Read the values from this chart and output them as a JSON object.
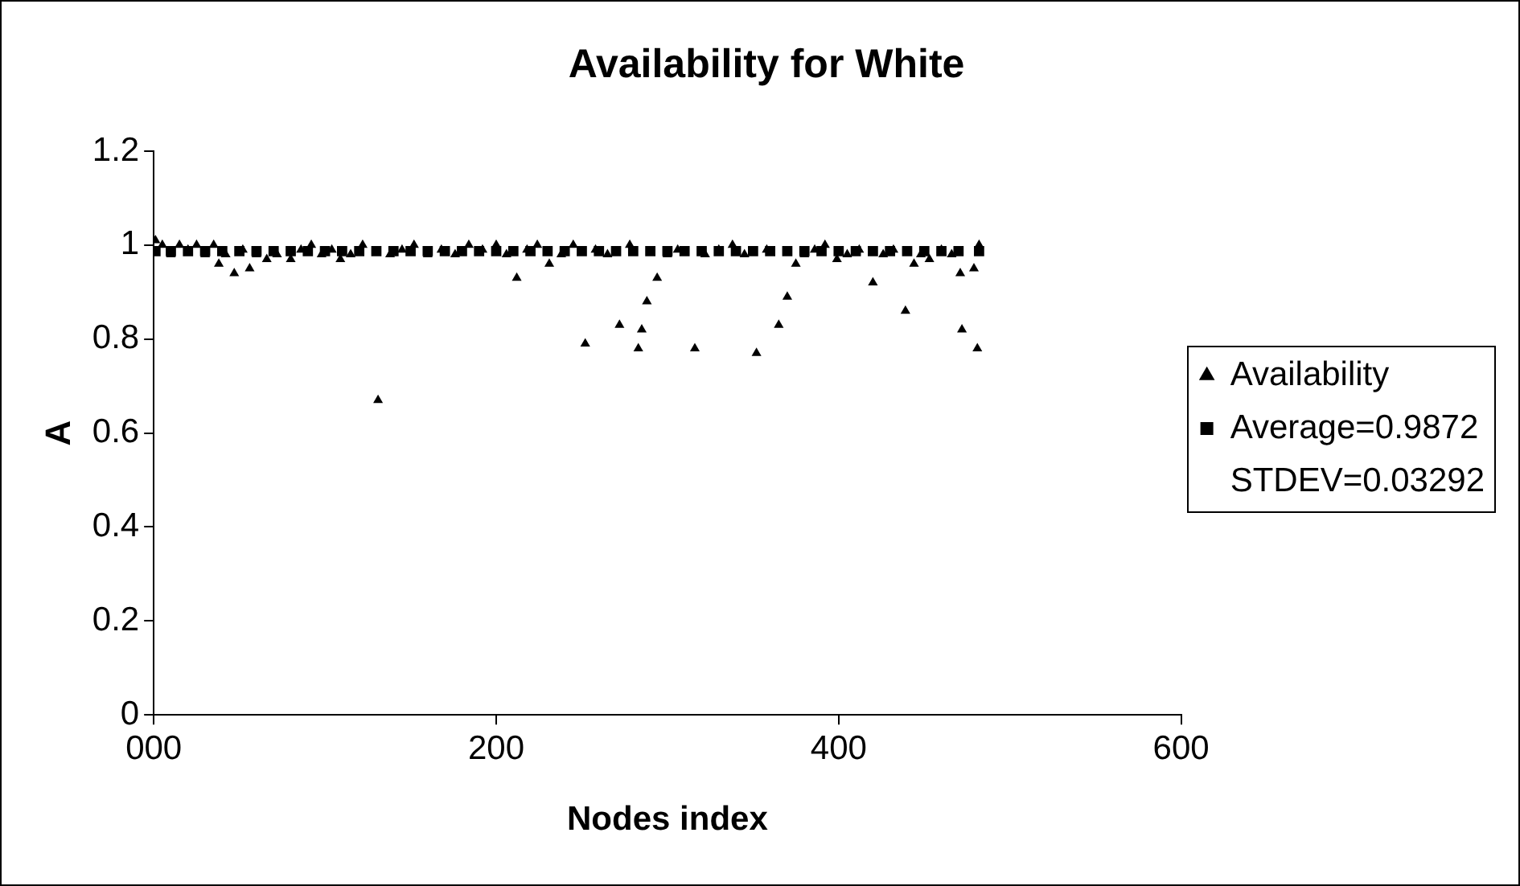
{
  "chart_data": {
    "type": "scatter",
    "title": "Availability for White",
    "xlabel": "Nodes index",
    "ylabel": "A",
    "xlim": [
      0,
      600
    ],
    "xticks": [
      {
        "value": 0,
        "label": "000"
      },
      200,
      400,
      600
    ],
    "ylim": [
      0,
      1.2
    ],
    "yticks": [
      0,
      0.2,
      0.4,
      0.6,
      0.8,
      1,
      1.2
    ],
    "grid": false,
    "legend": "right",
    "annotations": [
      "STDEV=0.03292"
    ],
    "series": [
      {
        "name": "Availability",
        "type": "scatter",
        "marker": "triangle",
        "color": "#000000",
        "x": [
          1,
          5,
          10,
          15,
          20,
          25,
          30,
          35,
          38,
          42,
          47,
          52,
          56,
          60,
          66,
          72,
          80,
          86,
          92,
          98,
          104,
          109,
          115,
          122,
          131,
          138,
          145,
          152,
          160,
          168,
          176,
          184,
          192,
          200,
          206,
          212,
          218,
          224,
          231,
          238,
          245,
          252,
          258,
          265,
          272,
          278,
          283,
          285,
          288,
          294,
          300,
          306,
          316,
          322,
          330,
          338,
          345,
          352,
          358,
          365,
          370,
          375,
          380,
          386,
          392,
          399,
          405,
          412,
          420,
          426,
          432,
          439,
          444,
          448,
          453,
          460,
          466,
          471,
          472,
          479,
          481,
          482
        ],
        "values": [
          1.01,
          1,
          0.98,
          1,
          0.99,
          1,
          0.98,
          1,
          0.96,
          0.98,
          0.94,
          0.99,
          0.95,
          0.98,
          0.97,
          0.98,
          0.97,
          0.99,
          1,
          0.98,
          0.99,
          0.97,
          0.98,
          1,
          0.67,
          0.98,
          0.99,
          1,
          0.98,
          0.99,
          0.98,
          1,
          0.99,
          1,
          0.98,
          0.93,
          0.99,
          1,
          0.96,
          0.98,
          1,
          0.79,
          0.99,
          0.98,
          0.83,
          1,
          0.78,
          0.82,
          0.88,
          0.93,
          0.98,
          0.99,
          0.78,
          0.98,
          0.99,
          1,
          0.98,
          0.77,
          0.99,
          0.83,
          0.89,
          0.96,
          0.98,
          0.99,
          1,
          0.97,
          0.98,
          0.99,
          0.92,
          0.98,
          0.99,
          0.86,
          0.96,
          0.98,
          0.97,
          0.99,
          0.98,
          0.94,
          0.82,
          0.95,
          0.78,
          1
        ]
      },
      {
        "name": "Average=0.9872",
        "type": "scatter",
        "marker": "square",
        "color": "#000000",
        "x": [
          1,
          10,
          20,
          30,
          40,
          50,
          60,
          70,
          80,
          90,
          100,
          110,
          120,
          130,
          140,
          150,
          160,
          170,
          180,
          190,
          200,
          210,
          220,
          230,
          240,
          250,
          260,
          270,
          280,
          290,
          300,
          310,
          320,
          330,
          340,
          350,
          360,
          370,
          380,
          390,
          400,
          410,
          420,
          430,
          440,
          450,
          460,
          470,
          482
        ],
        "values": [
          0.9872,
          0.9872,
          0.9872,
          0.9872,
          0.9872,
          0.9872,
          0.9872,
          0.9872,
          0.9872,
          0.9872,
          0.9872,
          0.9872,
          0.9872,
          0.9872,
          0.9872,
          0.9872,
          0.9872,
          0.9872,
          0.9872,
          0.9872,
          0.9872,
          0.9872,
          0.9872,
          0.9872,
          0.9872,
          0.9872,
          0.9872,
          0.9872,
          0.9872,
          0.9872,
          0.9872,
          0.9872,
          0.9872,
          0.9872,
          0.9872,
          0.9872,
          0.9872,
          0.9872,
          0.9872,
          0.9872,
          0.9872,
          0.9872,
          0.9872,
          0.9872,
          0.9872,
          0.9872,
          0.9872,
          0.9872,
          0.9872
        ]
      }
    ]
  }
}
